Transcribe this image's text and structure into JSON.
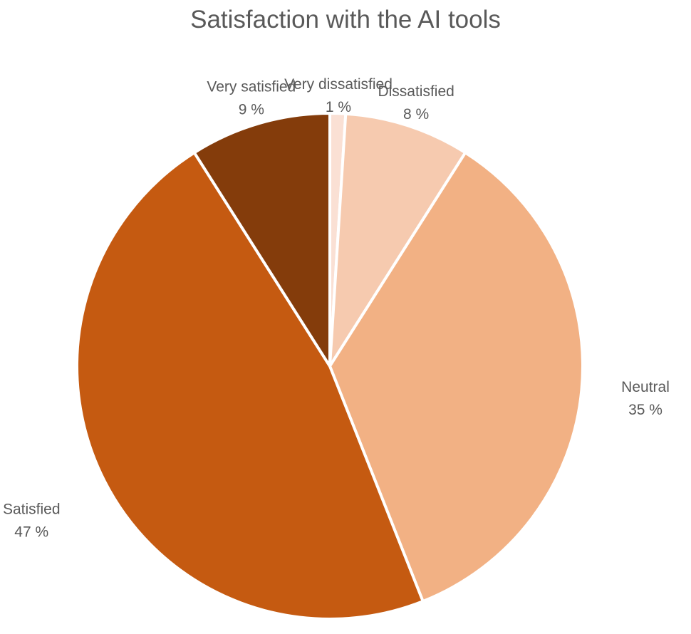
{
  "chart_data": {
    "type": "pie",
    "title": "Satisfaction with the AI tools",
    "slices": [
      {
        "label": "Very dissatisfied",
        "value": 1,
        "value_label": "1 %",
        "color": "#FAE0D4"
      },
      {
        "label": "Dissatisfied",
        "value": 8,
        "value_label": "8 %",
        "color": "#F6CAAF"
      },
      {
        "label": "Neutral",
        "value": 35,
        "value_label": "35 %",
        "color": "#F2B184"
      },
      {
        "label": "Satisfied",
        "value": 47,
        "value_label": "47 %",
        "color": "#C55A11"
      },
      {
        "label": "Very satisfied",
        "value": 9,
        "value_label": "9 %",
        "color": "#843C0B"
      }
    ],
    "start": "12 o'clock",
    "direction": "clockwise",
    "legend": "none"
  }
}
